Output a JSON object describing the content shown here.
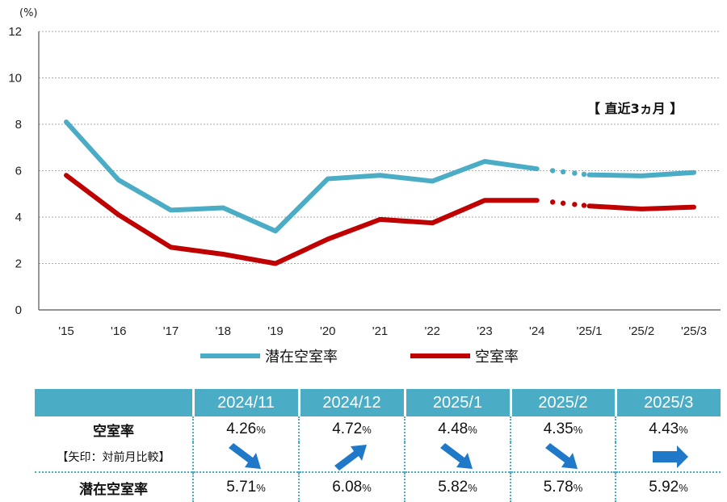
{
  "chart_data": {
    "type": "line",
    "ylabel": "(%)",
    "ylim": [
      0,
      12
    ],
    "yticks": [
      "0",
      "2",
      "4",
      "6",
      "8",
      "10",
      "12"
    ],
    "categories": [
      "'15",
      "'16",
      "'17",
      "'18",
      "'19",
      "'20",
      "'21",
      "'22",
      "'23",
      "'24",
      "'25/1",
      "'25/2",
      "'25/3"
    ],
    "annotation": "【 直近3ヵ月 】",
    "grid": true,
    "legend_position": "bottom",
    "series": [
      {
        "name": "潜在空室率",
        "color": "#4bacc6",
        "values": [
          8.1,
          5.6,
          4.3,
          4.4,
          3.4,
          5.65,
          5.8,
          5.55,
          6.4,
          6.08,
          5.82,
          5.78,
          5.92
        ]
      },
      {
        "name": "空室率",
        "color": "#c00000",
        "values": [
          5.8,
          4.1,
          2.7,
          2.4,
          2.0,
          3.05,
          3.9,
          3.75,
          4.72,
          4.72,
          4.48,
          4.35,
          4.43
        ]
      }
    ]
  },
  "table": {
    "headers": [
      "2024/11",
      "2024/12",
      "2025/1",
      "2025/2",
      "2025/3"
    ],
    "vacancy_label": "空室率",
    "arrow_label": "【矢印：対前月比較】",
    "latent_label": "潜在空室率",
    "pct_unit": "%",
    "vacancy": [
      "4.26",
      "4.72",
      "4.48",
      "4.35",
      "4.43"
    ],
    "latent": [
      "5.71",
      "6.08",
      "5.82",
      "5.78",
      "5.92"
    ],
    "arrows": [
      "down",
      "up",
      "down",
      "down",
      "flat"
    ],
    "arrow_color": "#1f78c8"
  }
}
